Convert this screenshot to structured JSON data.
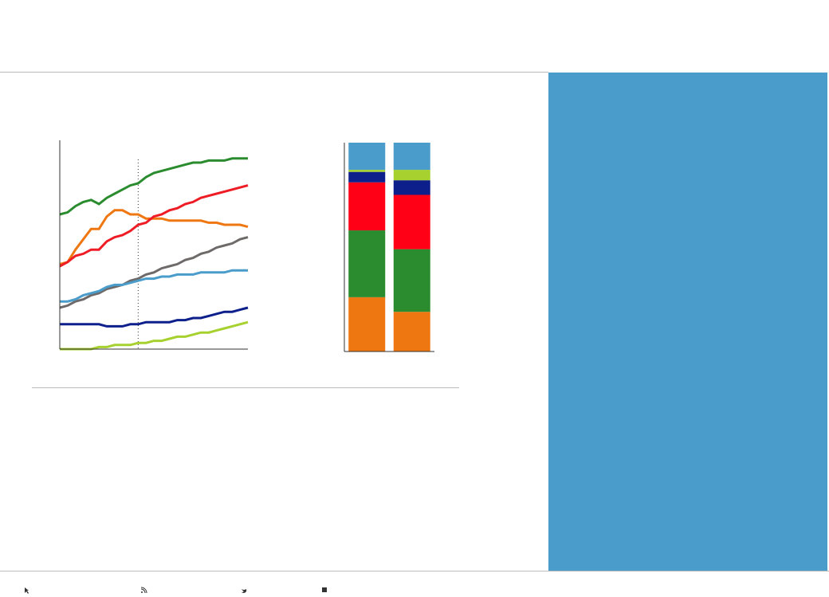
{
  "chart_data": [
    {
      "type": "line",
      "x": [
        0,
        1,
        2,
        3,
        4,
        5,
        6,
        7,
        8,
        9,
        10,
        11,
        12,
        13,
        14,
        15,
        16,
        17,
        18,
        19,
        20,
        21,
        22,
        23,
        24
      ],
      "xlim": [
        0,
        24
      ],
      "ylim": [
        0,
        100
      ],
      "vline": 10,
      "series": [
        {
          "color": "#2a8c2e",
          "values": [
            65,
            66,
            69,
            71,
            72,
            70,
            73,
            75,
            77,
            79,
            80,
            83,
            85,
            86,
            87,
            88,
            89,
            90,
            90,
            91,
            91,
            91,
            92,
            92,
            92
          ]
        },
        {
          "color": "#ef7712",
          "values": [
            41,
            42,
            48,
            53,
            58,
            58,
            64,
            67,
            67,
            65,
            65,
            63,
            63,
            63,
            62,
            62,
            62,
            62,
            62,
            61,
            61,
            60,
            60,
            60,
            59
          ]
        },
        {
          "color": "#ee1c25",
          "values": [
            40,
            42,
            45,
            46,
            48,
            48,
            52,
            54,
            55,
            57,
            60,
            61,
            64,
            65,
            67,
            68,
            70,
            71,
            73,
            74,
            75,
            76,
            77,
            78,
            79
          ]
        },
        {
          "color": "#6f6a6a",
          "values": [
            20,
            21,
            23,
            24,
            26,
            27,
            29,
            30,
            31,
            33,
            34,
            36,
            37,
            39,
            40,
            41,
            43,
            44,
            46,
            47,
            49,
            50,
            51,
            53,
            54
          ]
        },
        {
          "color": "#4a9ccb",
          "values": [
            23,
            23,
            24,
            26,
            27,
            28,
            30,
            31,
            31,
            32,
            33,
            34,
            34,
            35,
            35,
            36,
            36,
            36,
            37,
            37,
            37,
            37,
            38,
            38,
            38
          ]
        },
        {
          "color": "#0d1f8a",
          "values": [
            12,
            12,
            12,
            12,
            12,
            12,
            11,
            11,
            11,
            12,
            12,
            13,
            13,
            13,
            13,
            14,
            14,
            15,
            15,
            16,
            17,
            18,
            18,
            19,
            20
          ]
        },
        {
          "color": "#a6d12e",
          "values": [
            0,
            0,
            0,
            0,
            0,
            1,
            1,
            2,
            2,
            2,
            3,
            3,
            4,
            4,
            5,
            6,
            6,
            7,
            8,
            8,
            9,
            10,
            11,
            12,
            13
          ]
        }
      ]
    },
    {
      "type": "stacked_bar",
      "categories": [
        null,
        null
      ],
      "ylim": [
        0,
        100
      ],
      "series": [
        {
          "color": "#ef7712",
          "values": [
            26,
            19
          ]
        },
        {
          "color": "#2a8c2e",
          "values": [
            32,
            30
          ]
        },
        {
          "color": "#ff0016",
          "values": [
            23,
            26
          ]
        },
        {
          "color": "#0d1f8a",
          "values": [
            5,
            7
          ]
        },
        {
          "color": "#a6d12e",
          "values": [
            1,
            5
          ]
        },
        {
          "color": "#4a9ccb",
          "values": [
            13,
            13
          ]
        }
      ]
    }
  ]
}
